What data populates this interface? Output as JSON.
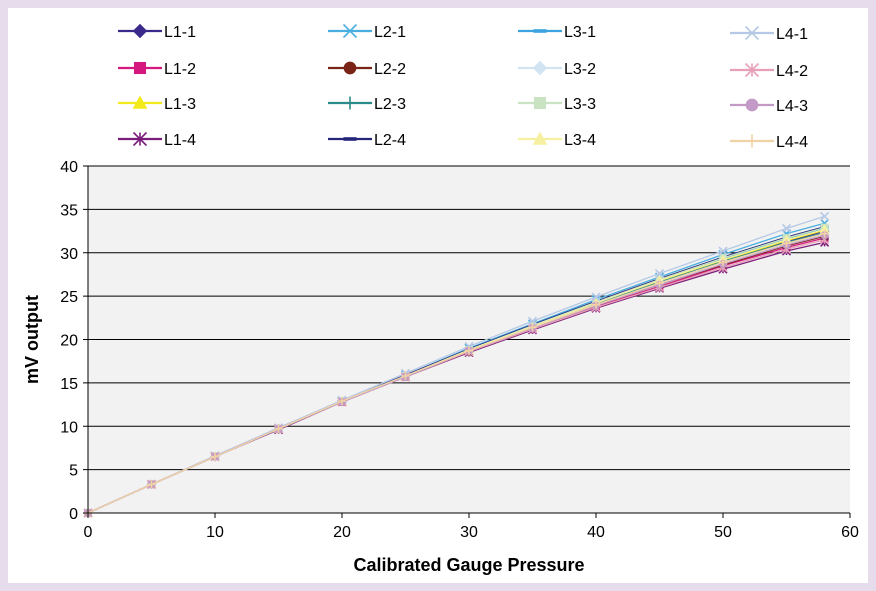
{
  "chart_data": {
    "type": "line",
    "title": "",
    "xlabel": "Calibrated Gauge Pressure",
    "ylabel": "mV output",
    "xlim": [
      0,
      60
    ],
    "ylim": [
      0,
      40
    ],
    "xticks": [
      0,
      10,
      20,
      30,
      40,
      50,
      60
    ],
    "yticks": [
      0,
      5,
      10,
      15,
      20,
      25,
      30,
      35,
      40
    ],
    "grid": "horizontal",
    "plot_background": "#f2f2f2",
    "legend_position": "top",
    "x": [
      0,
      5,
      10,
      15,
      20,
      25,
      30,
      35,
      40,
      45,
      50,
      55,
      58
    ],
    "series": [
      {
        "name": "L1-1",
        "color": "#3b2a8c",
        "marker": "diamond",
        "values": [
          0,
          3.3,
          6.5,
          9.7,
          12.9,
          15.8,
          18.8,
          21.5,
          24.1,
          26.7,
          29.2,
          31.3,
          32.5
        ]
      },
      {
        "name": "L1-2",
        "color": "#d6187e",
        "marker": "square",
        "values": [
          0,
          3.3,
          6.5,
          9.7,
          12.8,
          15.7,
          18.6,
          21.2,
          23.8,
          26.1,
          28.5,
          30.6,
          31.7
        ]
      },
      {
        "name": "L1-3",
        "color": "#f2ea1a",
        "marker": "triangle",
        "values": [
          0,
          3.3,
          6.5,
          9.7,
          12.9,
          15.8,
          18.8,
          21.5,
          24.2,
          26.7,
          29.1,
          31.4,
          32.6
        ]
      },
      {
        "name": "L1-4",
        "color": "#7a1d7a",
        "marker": "asterisk",
        "values": [
          0,
          3.3,
          6.5,
          9.6,
          12.8,
          15.7,
          18.5,
          21.1,
          23.6,
          25.9,
          28.1,
          30.2,
          31.2
        ]
      },
      {
        "name": "L2-1",
        "color": "#4aaee0",
        "marker": "x",
        "values": [
          0,
          3.3,
          6.5,
          9.8,
          12.9,
          15.9,
          19.0,
          21.8,
          24.6,
          27.2,
          29.8,
          32.2,
          33.4
        ]
      },
      {
        "name": "L2-2",
        "color": "#7a2418",
        "marker": "circle",
        "values": [
          0,
          3.3,
          6.5,
          9.7,
          12.8,
          15.7,
          18.6,
          21.3,
          23.9,
          26.3,
          28.6,
          30.8,
          31.9
        ]
      },
      {
        "name": "L2-3",
        "color": "#2c8a8a",
        "marker": "plus",
        "values": [
          0,
          3.3,
          6.5,
          9.7,
          12.9,
          15.8,
          18.7,
          21.5,
          24.1,
          26.6,
          29.0,
          31.2,
          32.3
        ]
      },
      {
        "name": "L2-4",
        "color": "#25257a",
        "marker": "dash",
        "values": [
          0,
          3.3,
          6.5,
          9.8,
          12.9,
          15.9,
          18.9,
          21.7,
          24.4,
          27.0,
          29.5,
          31.8,
          33.0
        ]
      },
      {
        "name": "L3-1",
        "color": "#3ba3e0",
        "marker": "dash",
        "values": [
          0,
          3.3,
          6.5,
          9.7,
          12.9,
          15.8,
          18.8,
          21.6,
          24.3,
          26.8,
          29.3,
          31.6,
          32.8
        ]
      },
      {
        "name": "L3-2",
        "color": "#d2e4f2",
        "marker": "diamond",
        "values": [
          0,
          3.3,
          6.5,
          9.7,
          12.8,
          15.7,
          18.7,
          21.4,
          24.0,
          26.5,
          28.9,
          31.0,
          32.2
        ]
      },
      {
        "name": "L3-3",
        "color": "#c9e3c3",
        "marker": "square",
        "values": [
          0,
          3.3,
          6.5,
          9.7,
          12.9,
          15.8,
          18.8,
          21.6,
          24.3,
          26.9,
          29.4,
          31.7,
          32.9
        ]
      },
      {
        "name": "L3-4",
        "color": "#f5f0a2",
        "marker": "triangle",
        "values": [
          0,
          3.3,
          6.5,
          9.7,
          12.9,
          15.8,
          18.8,
          21.5,
          24.2,
          26.8,
          29.2,
          31.5,
          32.7
        ]
      },
      {
        "name": "L4-1",
        "color": "#b5c8e6",
        "marker": "x",
        "values": [
          0,
          3.3,
          6.6,
          9.8,
          13.0,
          16.1,
          19.2,
          22.1,
          24.9,
          27.6,
          30.2,
          32.8,
          34.2
        ]
      },
      {
        "name": "L4-2",
        "color": "#e8a0b8",
        "marker": "asterisk",
        "values": [
          0,
          3.3,
          6.5,
          9.7,
          12.8,
          15.7,
          18.6,
          21.2,
          23.7,
          26.0,
          28.3,
          30.4,
          31.5
        ]
      },
      {
        "name": "L4-3",
        "color": "#c39ac6",
        "marker": "circle",
        "values": [
          0,
          3.3,
          6.5,
          9.7,
          12.8,
          15.7,
          18.7,
          21.3,
          23.9,
          26.3,
          28.7,
          30.9,
          32.0
        ]
      },
      {
        "name": "L4-4",
        "color": "#f0d2a4",
        "marker": "plus",
        "values": [
          0,
          3.3,
          6.5,
          9.7,
          12.9,
          15.8,
          18.7,
          21.4,
          24.0,
          26.5,
          28.9,
          31.1,
          32.2
        ]
      }
    ]
  }
}
